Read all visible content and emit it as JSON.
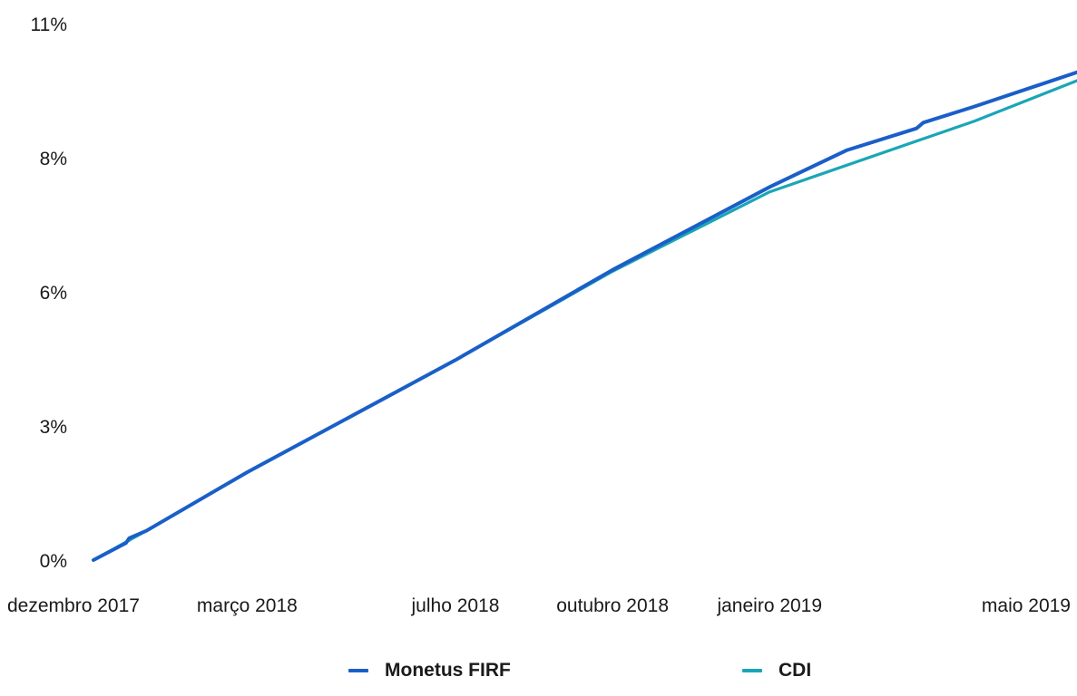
{
  "chart_data": {
    "type": "line",
    "title": "",
    "xlabel": "",
    "ylabel": "",
    "y_unit": "%",
    "y_ticks": [
      0,
      2.75,
      5.5,
      8.25,
      11
    ],
    "y_tick_labels": [
      "0%",
      "3%",
      "6%",
      "8%",
      "11%"
    ],
    "ylim": [
      0,
      11
    ],
    "x_ticks": [
      "2017-12-01",
      "2018-03-01",
      "2018-07-01",
      "2018-10-01",
      "2019-01-01",
      "2019-05-01"
    ],
    "x_tick_labels": [
      "dezembro 2017",
      "março 2018",
      "julho 2018",
      "outubro 2018",
      "janeiro 2019",
      "maio 2019"
    ],
    "xlim": [
      "2017-12-01",
      "2019-06-30"
    ],
    "grid": false,
    "legend_position": "bottom",
    "series": [
      {
        "name": "Monetus FIRF",
        "color": "#1a5fc8",
        "x": [
          "2017-12-01",
          "2017-12-20",
          "2017-12-22",
          "2018-01-01",
          "2018-03-01",
          "2018-07-01",
          "2018-10-01",
          "2019-01-01",
          "2019-02-15",
          "2019-03-28",
          "2019-04-01",
          "2019-05-01",
          "2019-06-30"
        ],
        "values": [
          0.0,
          0.35,
          0.45,
          0.6,
          1.8,
          4.1,
          5.95,
          7.65,
          8.4,
          8.85,
          8.97,
          9.3,
          10.0
        ]
      },
      {
        "name": "CDI",
        "color": "#1aa6b7",
        "x": [
          "2017-12-01",
          "2018-01-01",
          "2018-03-01",
          "2018-07-01",
          "2018-10-01",
          "2019-01-01",
          "2019-05-01",
          "2019-06-30"
        ],
        "values": [
          0.0,
          0.6,
          1.8,
          4.1,
          5.92,
          7.55,
          9.0,
          9.83
        ]
      }
    ]
  }
}
